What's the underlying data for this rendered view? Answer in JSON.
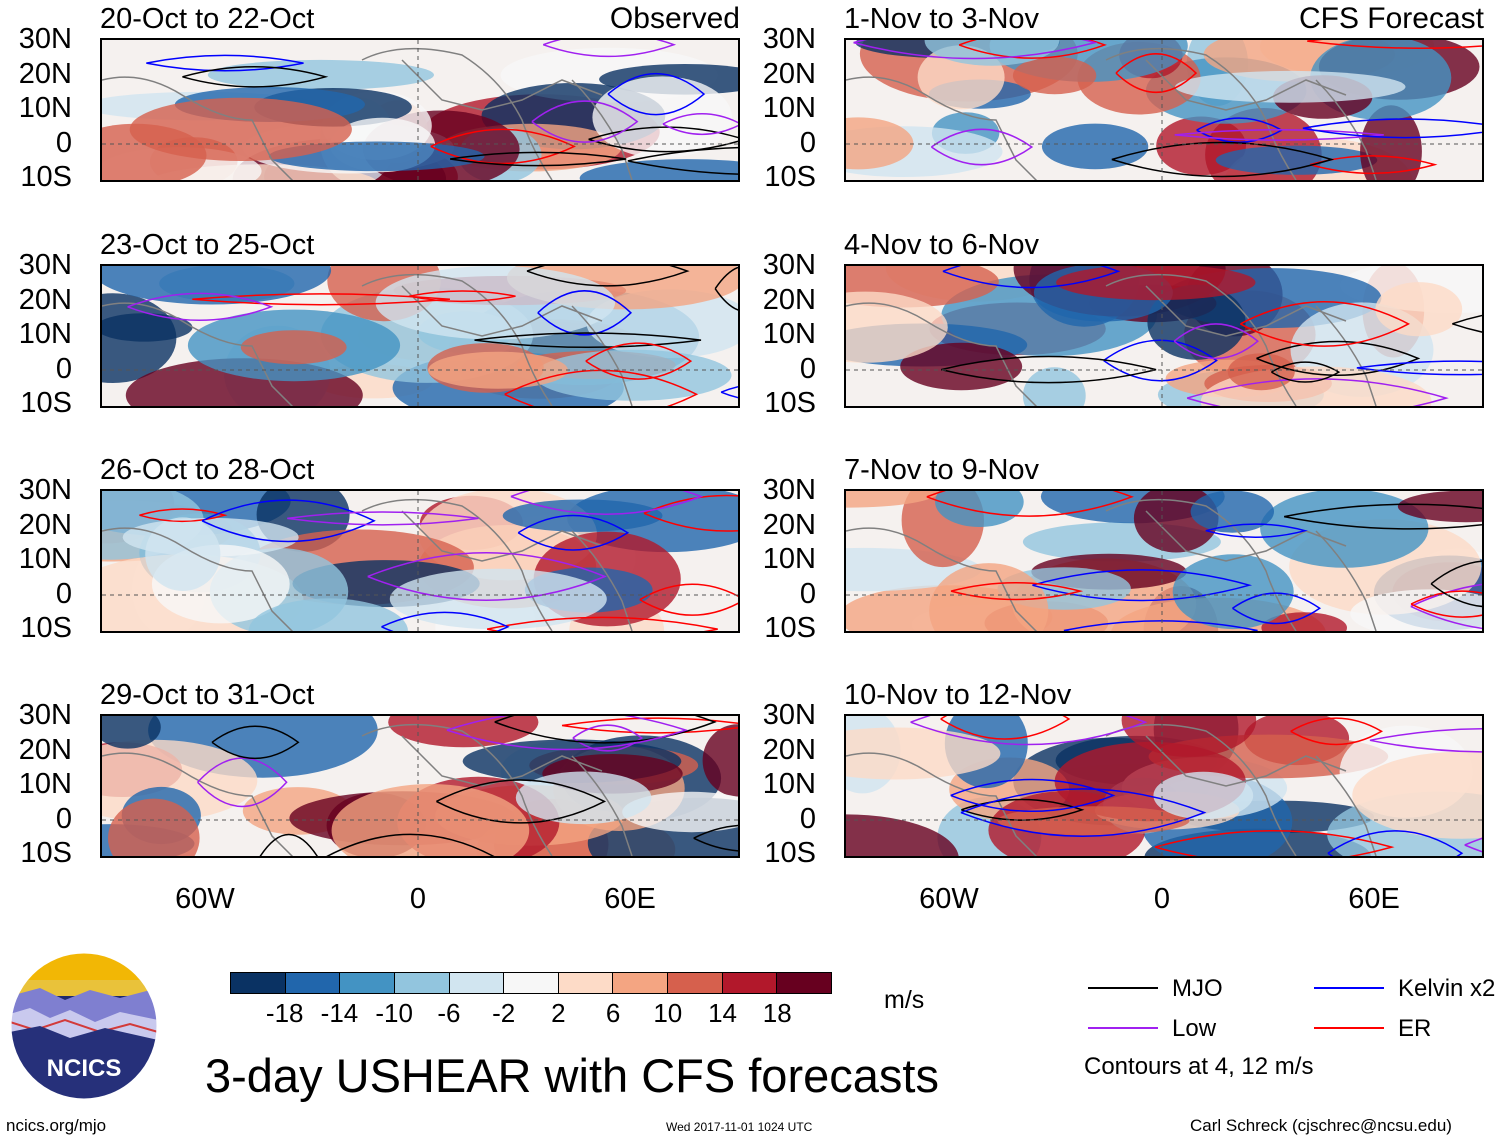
{
  "header": {
    "observed_label": "Observed",
    "forecast_label": "CFS Forecast"
  },
  "panels": [
    {
      "title": "20-Oct to 22-Oct",
      "kind": "observed"
    },
    {
      "title": "1-Nov to 3-Nov",
      "kind": "forecast"
    },
    {
      "title": "23-Oct to 25-Oct",
      "kind": "observed"
    },
    {
      "title": "4-Nov to 6-Nov",
      "kind": "forecast"
    },
    {
      "title": "26-Oct to 28-Oct",
      "kind": "observed"
    },
    {
      "title": "7-Nov to 9-Nov",
      "kind": "forecast"
    },
    {
      "title": "29-Oct to 31-Oct",
      "kind": "observed"
    },
    {
      "title": "10-Nov to 12-Nov",
      "kind": "forecast"
    }
  ],
  "axes": {
    "lat_labels": [
      "30N",
      "20N",
      "10N",
      "0",
      "10S"
    ],
    "lon_labels": [
      "60W",
      "0",
      "60E"
    ]
  },
  "colorbar": {
    "ticks": [
      "-18",
      "-14",
      "-10",
      "-6",
      "-2",
      "2",
      "6",
      "10",
      "14",
      "18"
    ],
    "colors": [
      "#0a3263",
      "#2166ac",
      "#4393c3",
      "#92c5de",
      "#d1e5f0",
      "#f7f7f7",
      "#fddbc7",
      "#f4a582",
      "#d6604d",
      "#b2182b",
      "#67001f"
    ],
    "units": "m/s"
  },
  "legend": {
    "items": [
      {
        "label": "MJO",
        "color": "#000000"
      },
      {
        "label": "Kelvin x2",
        "color": "#0000ff"
      },
      {
        "label": "Low",
        "color": "#a020f0"
      },
      {
        "label": "ER",
        "color": "#ff0000"
      }
    ],
    "note": "Contours at 4, 12 m/s"
  },
  "logo": {
    "text": "NCICS"
  },
  "title": "3-day USHEAR with CFS forecasts",
  "footer": {
    "url": "ncics.org/mjo",
    "timestamp": "Wed 2017-11-01 1024 UTC",
    "credit": "Carl Schreck (cjschrec@ncsu.edu)"
  }
}
